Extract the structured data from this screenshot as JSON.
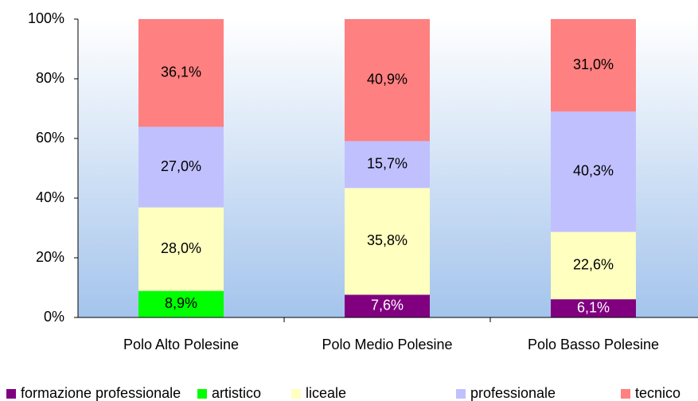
{
  "chart_data": {
    "type": "stacked_bar",
    "categories": [
      "Polo Alto Polesine",
      "Polo Medio Polesine",
      "Polo Basso Polesine"
    ],
    "series": [
      {
        "name": "formazione professionale",
        "color": "#800080",
        "values": [
          null,
          7.6,
          6.1
        ],
        "value_labels": [
          null,
          "7,6%",
          "6,1%"
        ]
      },
      {
        "name": "artistico",
        "color": "#00ff00",
        "values": [
          8.9,
          null,
          null
        ],
        "value_labels": [
          "8,9%",
          null,
          null
        ]
      },
      {
        "name": "liceale",
        "color": "#ffffc0",
        "values": [
          28.0,
          35.8,
          22.6
        ],
        "value_labels": [
          "28,0%",
          "35,8%",
          "22,6%"
        ]
      },
      {
        "name": "professionale",
        "color": "#c0c0ff",
        "values": [
          27.0,
          15.7,
          40.3
        ],
        "value_labels": [
          "27,0%",
          "15,7%",
          "40,3%"
        ]
      },
      {
        "name": "tecnico",
        "color": "#ff8080",
        "values": [
          36.1,
          40.9,
          31.0
        ],
        "value_labels": [
          "36,1%",
          "40,9%",
          "31,0%"
        ]
      }
    ],
    "ylim": [
      0,
      100
    ],
    "yticks": [
      {
        "value": 0,
        "label": "0%"
      },
      {
        "value": 20,
        "label": "20%"
      },
      {
        "value": 40,
        "label": "40%"
      },
      {
        "value": 60,
        "label": "60%"
      },
      {
        "value": 80,
        "label": "80%"
      },
      {
        "value": 100,
        "label": "100%"
      }
    ],
    "legend": "bottom"
  }
}
